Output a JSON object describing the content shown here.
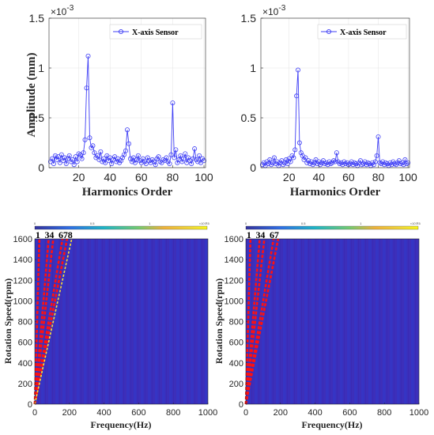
{
  "chart_data": [
    {
      "type": "line",
      "legend": "X-axis Sensor",
      "legend_position": "top-right",
      "xlabel": "Harmonics Order",
      "ylabel": "Amplitude (mm)",
      "y_exponent_label": "×10",
      "y_exponent": "-3",
      "xlim": [
        1,
        101
      ],
      "ylim": [
        0,
        1.5
      ],
      "xticks": [
        "20",
        "40",
        "60",
        "80",
        "100"
      ],
      "yticks": [
        "0",
        "0.5",
        "1",
        "1.5"
      ],
      "xtick_values": [
        20,
        40,
        60,
        80,
        100
      ],
      "ytick_values": [
        0,
        0.5,
        1,
        1.5
      ],
      "grid": true,
      "color": "#3f3ff5",
      "x": [
        2,
        3,
        4,
        5,
        6,
        7,
        8,
        9,
        10,
        11,
        12,
        13,
        14,
        15,
        16,
        17,
        18,
        19,
        20,
        21,
        22,
        23,
        24,
        25,
        26,
        27,
        28,
        29,
        30,
        31,
        32,
        33,
        34,
        35,
        36,
        37,
        38,
        39,
        40,
        41,
        42,
        43,
        44,
        45,
        46,
        47,
        48,
        49,
        50,
        51,
        52,
        53,
        54,
        55,
        56,
        57,
        58,
        59,
        60,
        61,
        62,
        63,
        64,
        65,
        66,
        67,
        68,
        69,
        70,
        71,
        72,
        73,
        74,
        75,
        76,
        77,
        78,
        79,
        80,
        81,
        82,
        83,
        84,
        85,
        86,
        87,
        88,
        89,
        90,
        91,
        92,
        93,
        94,
        95,
        96,
        97,
        98,
        99,
        100
      ],
      "y": [
        0.06,
        0.09,
        0.04,
        0.12,
        0.08,
        0.11,
        0.05,
        0.13,
        0.07,
        0.1,
        0.04,
        0.09,
        0.12,
        0.06,
        0.08,
        0.03,
        0.11,
        0.06,
        0.14,
        0.13,
        0.09,
        0.15,
        0.28,
        0.8,
        1.12,
        0.3,
        0.2,
        0.22,
        0.15,
        0.1,
        0.12,
        0.08,
        0.16,
        0.06,
        0.09,
        0.05,
        0.12,
        0.07,
        0.1,
        0.04,
        0.08,
        0.11,
        0.06,
        0.09,
        0.05,
        0.07,
        0.1,
        0.13,
        0.17,
        0.38,
        0.24,
        0.09,
        0.06,
        0.1,
        0.05,
        0.08,
        0.12,
        0.07,
        0.05,
        0.09,
        0.06,
        0.04,
        0.1,
        0.07,
        0.05,
        0.08,
        0.06,
        0.03,
        0.09,
        0.11,
        0.06,
        0.05,
        0.08,
        0.07,
        0.1,
        0.06,
        0.04,
        0.13,
        0.65,
        0.1,
        0.18,
        0.05,
        0.08,
        0.12,
        0.06,
        0.09,
        0.14,
        0.05,
        0.1,
        0.07,
        0.04,
        0.09,
        0.19,
        0.08,
        0.06,
        0.12,
        0.05,
        0.09,
        0.07
      ]
    },
    {
      "type": "line",
      "legend": "X-axis Sensor",
      "legend_position": "top-right",
      "xlabel": "Harmonics Order",
      "ylabel": "",
      "y_exponent_label": "×10",
      "y_exponent": "-3",
      "xlim": [
        1,
        101
      ],
      "ylim": [
        0,
        1.5
      ],
      "xticks": [
        "20",
        "40",
        "60",
        "80",
        "100"
      ],
      "yticks": [
        "0",
        "0.5",
        "1",
        "1.5"
      ],
      "xtick_values": [
        20,
        40,
        60,
        80,
        100
      ],
      "ytick_values": [
        0,
        0.5,
        1,
        1.5
      ],
      "grid": true,
      "color": "#3f3ff5",
      "x": [
        2,
        3,
        4,
        5,
        6,
        7,
        8,
        9,
        10,
        11,
        12,
        13,
        14,
        15,
        16,
        17,
        18,
        19,
        20,
        21,
        22,
        23,
        24,
        25,
        26,
        27,
        28,
        29,
        30,
        31,
        32,
        33,
        34,
        35,
        36,
        37,
        38,
        39,
        40,
        41,
        42,
        43,
        44,
        45,
        46,
        47,
        48,
        49,
        50,
        51,
        52,
        53,
        54,
        55,
        56,
        57,
        58,
        59,
        60,
        61,
        62,
        63,
        64,
        65,
        66,
        67,
        68,
        69,
        70,
        71,
        72,
        73,
        74,
        75,
        76,
        77,
        78,
        79,
        80,
        81,
        82,
        83,
        84,
        85,
        86,
        87,
        88,
        89,
        90,
        91,
        92,
        93,
        94,
        95,
        96,
        97,
        98,
        99,
        100
      ],
      "y": [
        0.03,
        0.05,
        0.02,
        0.06,
        0.04,
        0.08,
        0.03,
        0.05,
        0.1,
        0.04,
        0.06,
        0.02,
        0.05,
        0.07,
        0.03,
        0.05,
        0.08,
        0.04,
        0.09,
        0.06,
        0.12,
        0.1,
        0.18,
        0.72,
        0.98,
        0.25,
        0.15,
        0.12,
        0.08,
        0.1,
        0.05,
        0.07,
        0.04,
        0.06,
        0.03,
        0.05,
        0.08,
        0.04,
        0.06,
        0.03,
        0.05,
        0.07,
        0.04,
        0.05,
        0.03,
        0.06,
        0.04,
        0.05,
        0.07,
        0.06,
        0.15,
        0.06,
        0.04,
        0.05,
        0.03,
        0.06,
        0.04,
        0.05,
        0.03,
        0.04,
        0.06,
        0.03,
        0.05,
        0.04,
        0.02,
        0.05,
        0.07,
        0.03,
        0.04,
        0.06,
        0.03,
        0.05,
        0.04,
        0.02,
        0.05,
        0.03,
        0.06,
        0.12,
        0.31,
        0.05,
        0.04,
        0.06,
        0.03,
        0.05,
        0.04,
        0.02,
        0.05,
        0.03,
        0.06,
        0.04,
        0.03,
        0.05,
        0.07,
        0.04,
        0.05,
        0.03,
        0.08,
        0.04,
        0.05
      ]
    },
    {
      "type": "heatmap",
      "xlabel": "Frequency(Hz)",
      "ylabel": "Rotation Speed(rpm)",
      "xlim": [
        0,
        1000
      ],
      "ylim": [
        0,
        1600
      ],
      "xticks": [
        "0",
        "200",
        "400",
        "600",
        "800",
        "1000"
      ],
      "yticks": [
        "0",
        "200",
        "400",
        "600",
        "800",
        "1000",
        "1200",
        "1400",
        "1600"
      ],
      "xtick_values": [
        0,
        200,
        400,
        600,
        800,
        1000
      ],
      "ytick_values": [
        0,
        200,
        400,
        600,
        800,
        1000,
        1200,
        1400,
        1600
      ],
      "colorbar_ticks": [
        "0",
        "0.5",
        "1",
        "1.5"
      ],
      "colorbar_tick_values": [
        0,
        0.5,
        1,
        1.5
      ],
      "colorbar_exponent": "×10⁻³",
      "background_color": "#3a2fbd",
      "order_labels": [
        "1",
        "3",
        "4",
        "6",
        "7",
        "8"
      ],
      "orders": [
        1,
        3,
        4,
        6,
        7,
        8
      ],
      "order_label_x": [
        1,
        3,
        4,
        6,
        7,
        8
      ],
      "line_colors": [
        "#ff1010",
        "#ff1010",
        "#ff1010",
        "#ff1010",
        "#ff1010",
        "#ffe033"
      ]
    },
    {
      "type": "heatmap",
      "xlabel": "Frequency(Hz)",
      "ylabel": "Rotation Speed(rpm)",
      "xlim": [
        0,
        1000
      ],
      "ylim": [
        0,
        1600
      ],
      "xticks": [
        "0",
        "200",
        "400",
        "600",
        "800",
        "1000"
      ],
      "yticks": [
        "0",
        "200",
        "400",
        "600",
        "800",
        "1000",
        "1200",
        "1400",
        "1600"
      ],
      "xtick_values": [
        0,
        200,
        400,
        600,
        800,
        1000
      ],
      "ytick_values": [
        0,
        200,
        400,
        600,
        800,
        1000,
        1200,
        1400,
        1600
      ],
      "colorbar_ticks": [
        "0",
        "0.5",
        "1",
        "1.5"
      ],
      "colorbar_tick_values": [
        0,
        0.5,
        1,
        1.5
      ],
      "colorbar_exponent": "×10⁻³",
      "background_color": "#3a2fbd",
      "order_labels": [
        "1",
        "3",
        "4",
        "6",
        "7"
      ],
      "orders": [
        1,
        3,
        4,
        6,
        7
      ],
      "order_label_x": [
        1,
        3,
        4,
        6,
        7
      ],
      "line_colors": [
        "#ff1010",
        "#ff1010",
        "#ff1010",
        "#ff1010",
        "#ff1010"
      ]
    }
  ]
}
